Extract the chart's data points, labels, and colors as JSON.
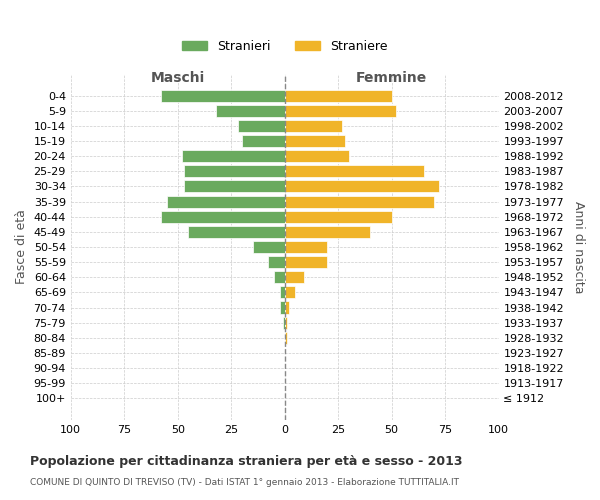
{
  "age_groups": [
    "100+",
    "95-99",
    "90-94",
    "85-89",
    "80-84",
    "75-79",
    "70-74",
    "65-69",
    "60-64",
    "55-59",
    "50-54",
    "45-49",
    "40-44",
    "35-39",
    "30-34",
    "25-29",
    "20-24",
    "15-19",
    "10-14",
    "5-9",
    "0-4"
  ],
  "birth_years": [
    "≤ 1912",
    "1913-1917",
    "1918-1922",
    "1923-1927",
    "1928-1932",
    "1933-1937",
    "1938-1942",
    "1943-1947",
    "1948-1952",
    "1953-1957",
    "1958-1962",
    "1963-1967",
    "1968-1972",
    "1973-1977",
    "1978-1982",
    "1983-1987",
    "1988-1992",
    "1993-1997",
    "1998-2002",
    "2003-2007",
    "2008-2012"
  ],
  "maschi": [
    0,
    0,
    0,
    0,
    0,
    1,
    2,
    2,
    5,
    8,
    15,
    45,
    58,
    55,
    47,
    47,
    48,
    20,
    22,
    32,
    58
  ],
  "femmine": [
    0,
    0,
    0,
    0,
    1,
    1,
    2,
    5,
    9,
    20,
    20,
    40,
    50,
    70,
    72,
    65,
    30,
    28,
    27,
    52,
    50
  ],
  "maschi_color": "#6aaa5e",
  "femmine_color": "#f0b429",
  "grid_color": "#cccccc",
  "title": "Popolazione per cittadinanza straniera per età e sesso - 2013",
  "subtitle": "COMUNE DI QUINTO DI TREVISO (TV) - Dati ISTAT 1° gennaio 2013 - Elaborazione TUTTITALIA.IT",
  "ylabel_left": "Fasce di età",
  "ylabel_right": "Anni di nascita",
  "xlabel_maschi": "Maschi",
  "xlabel_femmine": "Femmine",
  "legend_maschi": "Stranieri",
  "legend_femmine": "Straniere",
  "xlim": 100
}
